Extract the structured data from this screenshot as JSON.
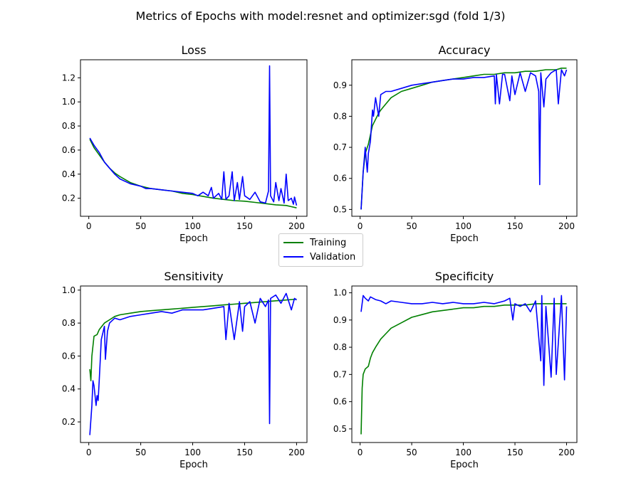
{
  "figure": {
    "suptitle": "Metrics of Epochs with model:resnet and optimizer:sgd (fold 1/3)"
  },
  "colors": {
    "training": "#008000",
    "validation": "#0000ff"
  },
  "legend": {
    "placement": "center",
    "entries": [
      {
        "label": "Training",
        "color": "#008000"
      },
      {
        "label": "Validation",
        "color": "#0000ff"
      }
    ]
  },
  "chart_data": [
    {
      "type": "line",
      "title": "Loss",
      "xlabel": "Epoch",
      "ylabel": "",
      "xlim": [
        -8,
        210
      ],
      "ylim": [
        0.05,
        1.35
      ],
      "xticks": [
        0,
        50,
        100,
        150,
        200
      ],
      "yticks": [
        0.2,
        0.4,
        0.6,
        0.8,
        1.0,
        1.2
      ],
      "ytick_labels": [
        "0.2",
        "0.4",
        "0.6",
        "0.8",
        "1.0",
        "1.2"
      ],
      "grid": false,
      "series": [
        {
          "name": "Training",
          "color": "#008000",
          "x": [
            1,
            5,
            10,
            15,
            20,
            25,
            30,
            40,
            50,
            60,
            70,
            80,
            90,
            100,
            110,
            120,
            130,
            140,
            150,
            160,
            170,
            180,
            190,
            195,
            200
          ],
          "y": [
            0.69,
            0.62,
            0.56,
            0.5,
            0.45,
            0.41,
            0.38,
            0.33,
            0.3,
            0.28,
            0.27,
            0.26,
            0.24,
            0.23,
            0.215,
            0.2,
            0.19,
            0.18,
            0.175,
            0.165,
            0.155,
            0.145,
            0.14,
            0.13,
            0.12
          ]
        },
        {
          "name": "Validation",
          "color": "#0000ff",
          "x": [
            1,
            5,
            10,
            15,
            20,
            25,
            30,
            40,
            50,
            55,
            60,
            70,
            80,
            90,
            100,
            105,
            110,
            115,
            118,
            120,
            125,
            128,
            130,
            132,
            135,
            138,
            140,
            143,
            145,
            148,
            150,
            155,
            160,
            165,
            170,
            173,
            174,
            175,
            178,
            180,
            183,
            185,
            188,
            190,
            192,
            195,
            197,
            198,
            200
          ],
          "y": [
            0.7,
            0.64,
            0.58,
            0.5,
            0.45,
            0.4,
            0.36,
            0.32,
            0.3,
            0.28,
            0.28,
            0.27,
            0.26,
            0.25,
            0.24,
            0.22,
            0.25,
            0.22,
            0.29,
            0.2,
            0.24,
            0.19,
            0.42,
            0.19,
            0.22,
            0.42,
            0.18,
            0.33,
            0.19,
            0.38,
            0.22,
            0.19,
            0.25,
            0.17,
            0.16,
            0.26,
            1.3,
            0.22,
            0.17,
            0.33,
            0.18,
            0.28,
            0.16,
            0.4,
            0.18,
            0.2,
            0.15,
            0.21,
            0.14
          ]
        }
      ]
    },
    {
      "type": "line",
      "title": "Accuracy",
      "xlabel": "Epoch",
      "ylabel": "",
      "xlim": [
        -8,
        210
      ],
      "ylim": [
        0.478,
        0.982
      ],
      "xticks": [
        0,
        50,
        100,
        150,
        200
      ],
      "yticks": [
        0.5,
        0.6,
        0.7,
        0.8,
        0.9
      ],
      "ytick_labels": [
        "0.5",
        "0.6",
        "0.7",
        "0.8",
        "0.9"
      ],
      "grid": false,
      "series": [
        {
          "name": "Training",
          "color": "#008000",
          "x": [
            1,
            3,
            5,
            8,
            10,
            12,
            15,
            18,
            20,
            25,
            30,
            40,
            50,
            60,
            70,
            80,
            90,
            100,
            110,
            120,
            130,
            140,
            150,
            160,
            170,
            180,
            190,
            195,
            200
          ],
          "y": [
            0.5,
            0.62,
            0.68,
            0.71,
            0.74,
            0.77,
            0.79,
            0.81,
            0.82,
            0.84,
            0.86,
            0.88,
            0.89,
            0.9,
            0.91,
            0.915,
            0.92,
            0.925,
            0.93,
            0.935,
            0.935,
            0.94,
            0.94,
            0.945,
            0.945,
            0.95,
            0.95,
            0.955,
            0.955
          ]
        },
        {
          "name": "Validation",
          "color": "#0000ff",
          "x": [
            1,
            3,
            5,
            7,
            8,
            10,
            12,
            13,
            15,
            18,
            20,
            25,
            30,
            40,
            50,
            60,
            70,
            80,
            90,
            100,
            110,
            120,
            130,
            131,
            132,
            135,
            138,
            140,
            145,
            147,
            150,
            155,
            160,
            165,
            170,
            173,
            174,
            175,
            178,
            180,
            185,
            190,
            192,
            195,
            198,
            200
          ],
          "y": [
            0.5,
            0.62,
            0.7,
            0.62,
            0.68,
            0.72,
            0.82,
            0.8,
            0.86,
            0.8,
            0.87,
            0.88,
            0.88,
            0.89,
            0.9,
            0.905,
            0.91,
            0.915,
            0.92,
            0.92,
            0.925,
            0.925,
            0.93,
            0.84,
            0.935,
            0.84,
            0.935,
            0.935,
            0.85,
            0.93,
            0.87,
            0.94,
            0.88,
            0.94,
            0.93,
            0.88,
            0.58,
            0.94,
            0.83,
            0.92,
            0.94,
            0.95,
            0.84,
            0.95,
            0.93,
            0.95
          ]
        }
      ]
    },
    {
      "type": "line",
      "title": "Sensitivity",
      "xlabel": "Epoch",
      "ylabel": "",
      "xlim": [
        -8,
        210
      ],
      "ylim": [
        0.075,
        1.025
      ],
      "xticks": [
        0,
        50,
        100,
        150,
        200
      ],
      "yticks": [
        0.2,
        0.4,
        0.6,
        0.8,
        1.0
      ],
      "ytick_labels": [
        "0.2",
        "0.4",
        "0.6",
        "0.8",
        "1.0"
      ],
      "grid": false,
      "series": [
        {
          "name": "Training",
          "color": "#008000",
          "x": [
            1,
            2,
            3,
            5,
            8,
            10,
            15,
            20,
            25,
            30,
            40,
            50,
            60,
            70,
            80,
            90,
            100,
            110,
            120,
            130,
            140,
            150,
            160,
            170,
            180,
            190,
            200
          ],
          "y": [
            0.52,
            0.45,
            0.6,
            0.72,
            0.73,
            0.76,
            0.8,
            0.82,
            0.84,
            0.85,
            0.86,
            0.87,
            0.875,
            0.88,
            0.885,
            0.89,
            0.895,
            0.9,
            0.905,
            0.91,
            0.915,
            0.92,
            0.925,
            0.93,
            0.935,
            0.94,
            0.945
          ]
        },
        {
          "name": "Validation",
          "color": "#0000ff",
          "x": [
            1,
            3,
            4,
            5,
            7,
            8,
            9,
            10,
            12,
            15,
            16,
            18,
            20,
            25,
            30,
            40,
            50,
            60,
            70,
            80,
            90,
            100,
            110,
            120,
            130,
            132,
            135,
            140,
            145,
            148,
            150,
            155,
            160,
            165,
            170,
            173,
            174,
            175,
            180,
            185,
            190,
            195,
            198,
            200
          ],
          "y": [
            0.12,
            0.3,
            0.45,
            0.42,
            0.3,
            0.36,
            0.33,
            0.45,
            0.7,
            0.78,
            0.58,
            0.75,
            0.8,
            0.83,
            0.82,
            0.84,
            0.85,
            0.86,
            0.87,
            0.86,
            0.88,
            0.88,
            0.88,
            0.89,
            0.9,
            0.7,
            0.92,
            0.7,
            0.93,
            0.75,
            0.9,
            0.93,
            0.8,
            0.95,
            0.9,
            0.94,
            0.19,
            0.95,
            0.97,
            0.92,
            0.98,
            0.88,
            0.95,
            0.94
          ]
        }
      ]
    },
    {
      "type": "line",
      "title": "Specificity",
      "xlabel": "Epoch",
      "ylabel": "",
      "xlim": [
        -8,
        210
      ],
      "ylim": [
        0.45,
        1.025
      ],
      "xticks": [
        0,
        50,
        100,
        150,
        200
      ],
      "yticks": [
        0.5,
        0.6,
        0.7,
        0.8,
        0.9,
        1.0
      ],
      "ytick_labels": [
        "0.5",
        "0.6",
        "0.7",
        "0.8",
        "0.9",
        "1.0"
      ],
      "grid": false,
      "series": [
        {
          "name": "Training",
          "color": "#008000",
          "x": [
            1,
            2,
            3,
            5,
            8,
            10,
            12,
            15,
            20,
            25,
            30,
            40,
            50,
            60,
            70,
            80,
            90,
            100,
            110,
            120,
            130,
            140,
            150,
            160,
            170,
            180,
            190,
            200
          ],
          "y": [
            0.48,
            0.65,
            0.7,
            0.72,
            0.73,
            0.76,
            0.78,
            0.8,
            0.83,
            0.85,
            0.87,
            0.89,
            0.91,
            0.92,
            0.93,
            0.935,
            0.94,
            0.945,
            0.945,
            0.95,
            0.95,
            0.955,
            0.955,
            0.955,
            0.96,
            0.96,
            0.96,
            0.96
          ]
        },
        {
          "name": "Validation",
          "color": "#0000ff",
          "x": [
            1,
            3,
            5,
            8,
            10,
            15,
            20,
            25,
            30,
            40,
            50,
            60,
            70,
            80,
            90,
            100,
            110,
            120,
            130,
            140,
            145,
            148,
            150,
            155,
            160,
            165,
            170,
            175,
            176,
            178,
            180,
            185,
            188,
            190,
            195,
            198,
            200
          ],
          "y": [
            0.93,
            0.99,
            0.98,
            0.97,
            0.985,
            0.975,
            0.97,
            0.96,
            0.97,
            0.965,
            0.96,
            0.96,
            0.965,
            0.96,
            0.965,
            0.96,
            0.96,
            0.965,
            0.96,
            0.97,
            0.98,
            0.9,
            0.96,
            0.95,
            0.96,
            0.93,
            0.97,
            0.75,
            0.99,
            0.66,
            0.95,
            0.69,
            0.98,
            0.7,
            0.99,
            0.68,
            0.95
          ]
        }
      ]
    }
  ]
}
